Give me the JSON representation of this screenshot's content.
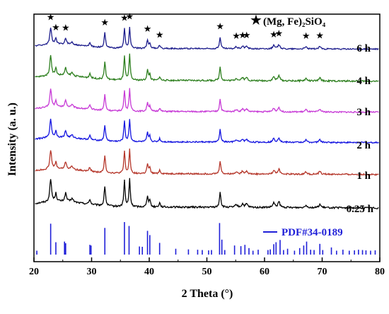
{
  "chart_data": {
    "type": "line",
    "xlabel": "2 Theta (°)",
    "ylabel": "Intensity (a. u.)",
    "xlim": [
      20,
      80
    ],
    "xticks": [
      20,
      30,
      40,
      50,
      60,
      70,
      80
    ],
    "phase_legend": {
      "symbol": "★",
      "label": "(Mg, Fe)₂SiO₄"
    },
    "phase_marker_positions": [
      22.9,
      23.8,
      25.5,
      32.3,
      35.7,
      36.6,
      39.7,
      41.8,
      52.3,
      55.1,
      56.2,
      56.9,
      61.6,
      62.5,
      67.2,
      69.6
    ],
    "reference": {
      "label": "PDF#34-0189",
      "color": "#1f1fd8",
      "lines": [
        {
          "x": 20.5,
          "h": 0.12
        },
        {
          "x": 22.9,
          "h": 0.95
        },
        {
          "x": 23.8,
          "h": 0.38
        },
        {
          "x": 25.3,
          "h": 0.4
        },
        {
          "x": 25.5,
          "h": 0.35
        },
        {
          "x": 29.7,
          "h": 0.3
        },
        {
          "x": 29.9,
          "h": 0.28
        },
        {
          "x": 32.3,
          "h": 0.82
        },
        {
          "x": 35.7,
          "h": 1.0
        },
        {
          "x": 36.5,
          "h": 0.88
        },
        {
          "x": 38.3,
          "h": 0.25
        },
        {
          "x": 38.8,
          "h": 0.24
        },
        {
          "x": 39.7,
          "h": 0.73
        },
        {
          "x": 40.1,
          "h": 0.6
        },
        {
          "x": 41.8,
          "h": 0.36
        },
        {
          "x": 44.6,
          "h": 0.18
        },
        {
          "x": 46.8,
          "h": 0.16
        },
        {
          "x": 48.4,
          "h": 0.15
        },
        {
          "x": 49.2,
          "h": 0.14
        },
        {
          "x": 50.3,
          "h": 0.13
        },
        {
          "x": 50.8,
          "h": 0.14
        },
        {
          "x": 52.2,
          "h": 0.97
        },
        {
          "x": 52.6,
          "h": 0.46
        },
        {
          "x": 53.1,
          "h": 0.14
        },
        {
          "x": 54.8,
          "h": 0.28
        },
        {
          "x": 55.9,
          "h": 0.26
        },
        {
          "x": 56.6,
          "h": 0.3
        },
        {
          "x": 57.3,
          "h": 0.2
        },
        {
          "x": 58.0,
          "h": 0.12
        },
        {
          "x": 58.9,
          "h": 0.15
        },
        {
          "x": 60.6,
          "h": 0.14
        },
        {
          "x": 61.0,
          "h": 0.16
        },
        {
          "x": 61.6,
          "h": 0.32
        },
        {
          "x": 62.0,
          "h": 0.38
        },
        {
          "x": 62.7,
          "h": 0.45
        },
        {
          "x": 63.3,
          "h": 0.14
        },
        {
          "x": 64.0,
          "h": 0.18
        },
        {
          "x": 65.2,
          "h": 0.12
        },
        {
          "x": 66.1,
          "h": 0.2
        },
        {
          "x": 66.8,
          "h": 0.28
        },
        {
          "x": 67.3,
          "h": 0.4
        },
        {
          "x": 68.0,
          "h": 0.15
        },
        {
          "x": 68.6,
          "h": 0.14
        },
        {
          "x": 69.6,
          "h": 0.33
        },
        {
          "x": 70.1,
          "h": 0.14
        },
        {
          "x": 71.6,
          "h": 0.22
        },
        {
          "x": 72.5,
          "h": 0.12
        },
        {
          "x": 73.6,
          "h": 0.15
        },
        {
          "x": 74.7,
          "h": 0.12
        },
        {
          "x": 75.6,
          "h": 0.13
        },
        {
          "x": 76.3,
          "h": 0.15
        },
        {
          "x": 77.0,
          "h": 0.14
        },
        {
          "x": 77.6,
          "h": 0.13
        },
        {
          "x": 78.4,
          "h": 0.12
        },
        {
          "x": 79.2,
          "h": 0.13
        }
      ]
    },
    "series": [
      {
        "name": "0.25 h",
        "color": "#000000"
      },
      {
        "name": "1 h",
        "color": "#b5362a"
      },
      {
        "name": "2 h",
        "color": "#1414e0"
      },
      {
        "name": "3 h",
        "color": "#c73ad6"
      },
      {
        "name": "4 h",
        "color": "#2d7f1e"
      },
      {
        "name": "6 h",
        "color": "#1c1c8c"
      }
    ],
    "peaks": [
      {
        "x": 22.9,
        "h": 0.8,
        "w": 0.18
      },
      {
        "x": 23.8,
        "h": 0.28,
        "w": 0.16
      },
      {
        "x": 25.5,
        "h": 0.3,
        "w": 0.18
      },
      {
        "x": 26.6,
        "h": 0.12,
        "w": 0.25
      },
      {
        "x": 29.7,
        "h": 0.18,
        "w": 0.15
      },
      {
        "x": 32.3,
        "h": 0.7,
        "w": 0.14
      },
      {
        "x": 35.7,
        "h": 0.92,
        "w": 0.13
      },
      {
        "x": 36.6,
        "h": 1.0,
        "w": 0.13
      },
      {
        "x": 39.7,
        "h": 0.4,
        "w": 0.14
      },
      {
        "x": 40.1,
        "h": 0.25,
        "w": 0.13
      },
      {
        "x": 41.8,
        "h": 0.15,
        "w": 0.15
      },
      {
        "x": 52.3,
        "h": 0.55,
        "w": 0.14
      },
      {
        "x": 55.1,
        "h": 0.1,
        "w": 0.2
      },
      {
        "x": 56.2,
        "h": 0.12,
        "w": 0.2
      },
      {
        "x": 56.9,
        "h": 0.12,
        "w": 0.2
      },
      {
        "x": 61.6,
        "h": 0.16,
        "w": 0.2
      },
      {
        "x": 62.5,
        "h": 0.2,
        "w": 0.2
      },
      {
        "x": 67.2,
        "h": 0.1,
        "w": 0.2
      },
      {
        "x": 69.6,
        "h": 0.12,
        "w": 0.2
      }
    ],
    "amorphous_hump": {
      "center": 24.5,
      "width": 6,
      "height": 0.18
    }
  }
}
